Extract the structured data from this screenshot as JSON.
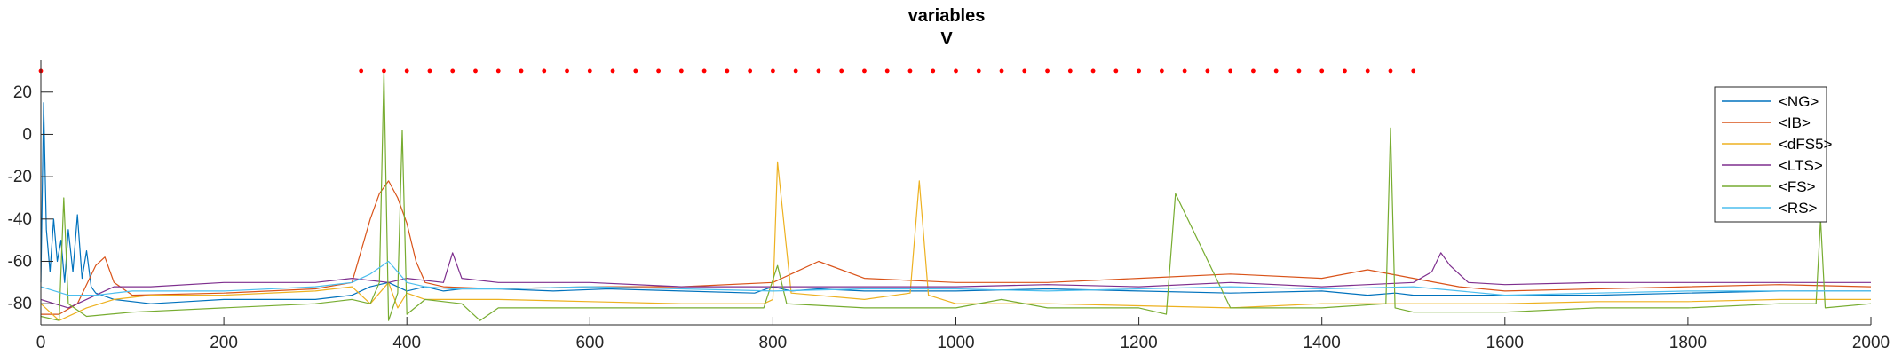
{
  "chart_data": {
    "type": "line",
    "title": "variables",
    "subtitle": "V",
    "xlabel": "",
    "ylabel": "",
    "xlim": [
      0,
      2000
    ],
    "ylim": [
      -90,
      35
    ],
    "xticks": [
      0,
      200,
      400,
      600,
      800,
      1000,
      1200,
      1400,
      1600,
      1800,
      2000
    ],
    "yticks": [
      20,
      0,
      -20,
      -40,
      -60,
      -80
    ],
    "grid": false,
    "legend_position": "top-right",
    "series": [
      {
        "name": "<NG>",
        "color": "#0072BD",
        "x": [
          0,
          3,
          6,
          10,
          14,
          18,
          22,
          26,
          30,
          35,
          40,
          45,
          50,
          55,
          60,
          80,
          120,
          160,
          200,
          250,
          300,
          340,
          360,
          380,
          400,
          420,
          440,
          460,
          500,
          560,
          620,
          700,
          780,
          800,
          820,
          850,
          900,
          1000,
          1100,
          1200,
          1300,
          1400,
          1450,
          1480,
          1500,
          1550,
          1600,
          1700,
          1800,
          1900,
          2000
        ],
        "y": [
          -70,
          15,
          -45,
          -65,
          -40,
          -60,
          -50,
          -70,
          -45,
          -65,
          -38,
          -68,
          -55,
          -72,
          -75,
          -78,
          -80,
          -79,
          -78,
          -78,
          -78,
          -76,
          -72,
          -70,
          -74,
          -72,
          -74,
          -73,
          -73,
          -74,
          -73,
          -74,
          -75,
          -72,
          -74,
          -73,
          -74,
          -74,
          -73,
          -74,
          -75,
          -74,
          -76,
          -75,
          -76,
          -76,
          -76,
          -76,
          -75,
          -74,
          -74
        ]
      },
      {
        "name": "<IB>",
        "color": "#D95319",
        "x": [
          0,
          20,
          40,
          60,
          70,
          80,
          100,
          200,
          300,
          340,
          350,
          360,
          370,
          380,
          390,
          400,
          410,
          420,
          440,
          500,
          600,
          700,
          800,
          850,
          900,
          1000,
          1100,
          1200,
          1300,
          1400,
          1450,
          1500,
          1550,
          1600,
          1700,
          1800,
          1900,
          2000
        ],
        "y": [
          -85,
          -85,
          -80,
          -62,
          -58,
          -70,
          -76,
          -75,
          -73,
          -70,
          -55,
          -40,
          -28,
          -22,
          -30,
          -42,
          -60,
          -70,
          -72,
          -73,
          -72,
          -72,
          -70,
          -60,
          -68,
          -70,
          -70,
          -68,
          -66,
          -68,
          -64,
          -68,
          -72,
          -74,
          -73,
          -72,
          -71,
          -72
        ]
      },
      {
        "name": "<dFS5>",
        "color": "#EDB120",
        "x": [
          0,
          20,
          50,
          80,
          120,
          200,
          300,
          340,
          360,
          380,
          390,
          400,
          420,
          500,
          600,
          700,
          790,
          800,
          805,
          820,
          900,
          950,
          960,
          970,
          1000,
          1100,
          1200,
          1300,
          1400,
          1500,
          1600,
          1700,
          1800,
          1900,
          2000
        ],
        "y": [
          -80,
          -88,
          -82,
          -78,
          -76,
          -76,
          -74,
          -72,
          -80,
          -70,
          -82,
          -75,
          -78,
          -78,
          -79,
          -80,
          -80,
          -78,
          -13,
          -75,
          -78,
          -75,
          -22,
          -76,
          -80,
          -80,
          -81,
          -82,
          -80,
          -80,
          -80,
          -79,
          -79,
          -78,
          -78
        ]
      },
      {
        "name": "<LTS>",
        "color": "#7E2F8E",
        "x": [
          0,
          30,
          60,
          80,
          120,
          200,
          300,
          340,
          380,
          400,
          440,
          450,
          460,
          500,
          600,
          700,
          800,
          900,
          1000,
          1100,
          1200,
          1300,
          1400,
          1500,
          1520,
          1530,
          1540,
          1560,
          1600,
          1700,
          1800,
          1900,
          2000
        ],
        "y": [
          -78,
          -82,
          -76,
          -72,
          -72,
          -70,
          -70,
          -68,
          -70,
          -68,
          -70,
          -56,
          -68,
          -70,
          -70,
          -72,
          -72,
          -72,
          -72,
          -71,
          -72,
          -70,
          -72,
          -70,
          -65,
          -56,
          -62,
          -70,
          -71,
          -70,
          -70,
          -70,
          -70
        ]
      },
      {
        "name": "<FS>",
        "color": "#77AC30",
        "x": [
          0,
          20,
          25,
          30,
          50,
          100,
          200,
          300,
          340,
          360,
          370,
          375,
          380,
          390,
          395,
          400,
          420,
          460,
          480,
          500,
          600,
          700,
          790,
          805,
          815,
          900,
          1000,
          1050,
          1100,
          1200,
          1230,
          1240,
          1300,
          1400,
          1470,
          1475,
          1480,
          1500,
          1600,
          1700,
          1800,
          1900,
          1940,
          1945,
          1950,
          2000
        ],
        "y": [
          -86,
          -88,
          -30,
          -80,
          -86,
          -84,
          -82,
          -80,
          -78,
          -80,
          -70,
          30,
          -88,
          -75,
          2,
          -85,
          -78,
          -80,
          -88,
          -82,
          -82,
          -82,
          -82,
          -62,
          -80,
          -82,
          -82,
          -78,
          -82,
          -82,
          -85,
          -28,
          -82,
          -82,
          -80,
          3,
          -82,
          -84,
          -84,
          -82,
          -82,
          -80,
          -80,
          -40,
          -82,
          -80
        ]
      },
      {
        "name": "<RS>",
        "color": "#4DBEEE",
        "x": [
          0,
          30,
          60,
          100,
          200,
          300,
          340,
          360,
          380,
          400,
          420,
          450,
          500,
          600,
          700,
          800,
          900,
          1000,
          1100,
          1200,
          1300,
          1400,
          1500,
          1600,
          1700,
          1800,
          1900,
          2000
        ],
        "y": [
          -72,
          -76,
          -76,
          -74,
          -74,
          -72,
          -70,
          -66,
          -60,
          -70,
          -72,
          -73,
          -73,
          -72,
          -73,
          -74,
          -73,
          -73,
          -74,
          -73,
          -72,
          -73,
          -72,
          -76,
          -75,
          -74,
          -74,
          -74
        ]
      }
    ],
    "markers": {
      "color": "#FF0000",
      "y": 30,
      "x": [
        350,
        375,
        400,
        425,
        450,
        475,
        500,
        525,
        550,
        575,
        600,
        625,
        650,
        675,
        700,
        725,
        750,
        775,
        800,
        825,
        850,
        875,
        900,
        925,
        950,
        975,
        1000,
        1025,
        1050,
        1075,
        1100,
        1125,
        1150,
        1175,
        1200,
        1225,
        1250,
        1275,
        1300,
        1325,
        1350,
        1375,
        1400,
        1425,
        1450,
        1475,
        1500
      ]
    },
    "start_marker": {
      "x": 0,
      "y": 30,
      "color": "#FF0000"
    }
  }
}
